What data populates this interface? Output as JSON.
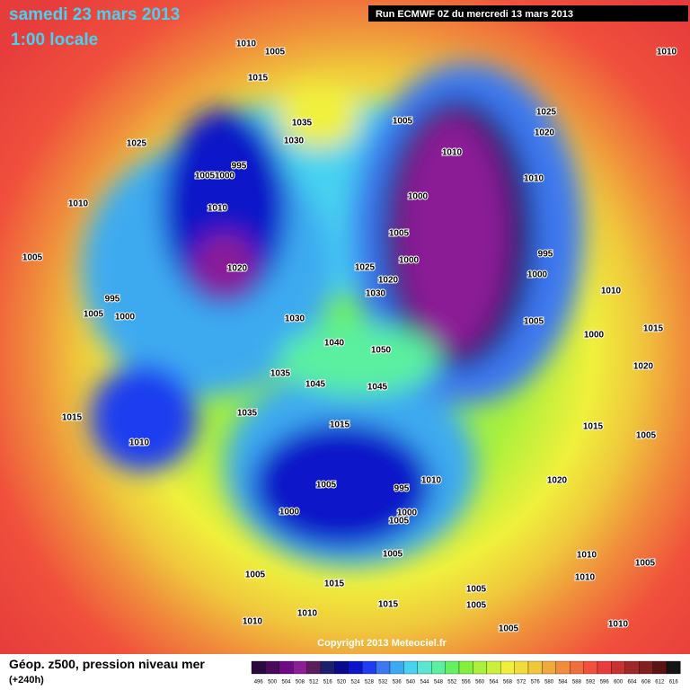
{
  "header": {
    "date": "samedi 23 mars 2013",
    "time": "1:00 locale",
    "run": "Run ECMWF 0Z du mercredi 13 mars 2013"
  },
  "footer": {
    "copyright": "Copyright 2013 Meteociel.fr",
    "product": "Géop. z500, pression niveau mer",
    "lead": "(+240h)"
  },
  "isobar_labels": [
    1010,
    1005,
    1015,
    1010,
    1035,
    1030,
    1005,
    1025,
    1010,
    1025,
    1020,
    995,
    1005,
    1000,
    1010,
    1010,
    1010,
    1000,
    1005,
    1000,
    1005,
    1020,
    995,
    1025,
    1020,
    1030,
    1000,
    995,
    1005,
    1000,
    1010,
    1005,
    1000,
    1015,
    1030,
    1040,
    1050,
    1035,
    1045,
    1045,
    1020,
    1015,
    1035,
    1015,
    1015,
    1005,
    1010,
    1010,
    1020,
    1005,
    995,
    1000,
    1000,
    1005,
    1005,
    1010,
    1005,
    1005,
    1015,
    1010,
    1005,
    1005,
    1010,
    1015,
    1005,
    1010,
    1010
  ],
  "legend": {
    "values": [
      496,
      500,
      504,
      508,
      512,
      516,
      520,
      524,
      528,
      532,
      536,
      540,
      544,
      548,
      552,
      556,
      560,
      564,
      568,
      572,
      576,
      580,
      584,
      588,
      592,
      596,
      600,
      604,
      608,
      612,
      616
    ],
    "colors": [
      "#2a0a3c",
      "#4a0a5a",
      "#6e0a86",
      "#8c1e96",
      "#5a1e5a",
      "#1e1e6e",
      "#0a0a8c",
      "#0a14c8",
      "#1e3cf0",
      "#3c78f0",
      "#3caaf0",
      "#46d2f0",
      "#5ae6d2",
      "#5af0a0",
      "#64f064",
      "#82f03c",
      "#aaf03c",
      "#c8f03c",
      "#f0f03c",
      "#f0dc3c",
      "#f0c83c",
      "#f0aa3c",
      "#f08c3c",
      "#f06e3c",
      "#f0503c",
      "#e63c3c",
      "#c83232",
      "#a02828",
      "#822020",
      "#5a1414",
      "#141414"
    ]
  }
}
